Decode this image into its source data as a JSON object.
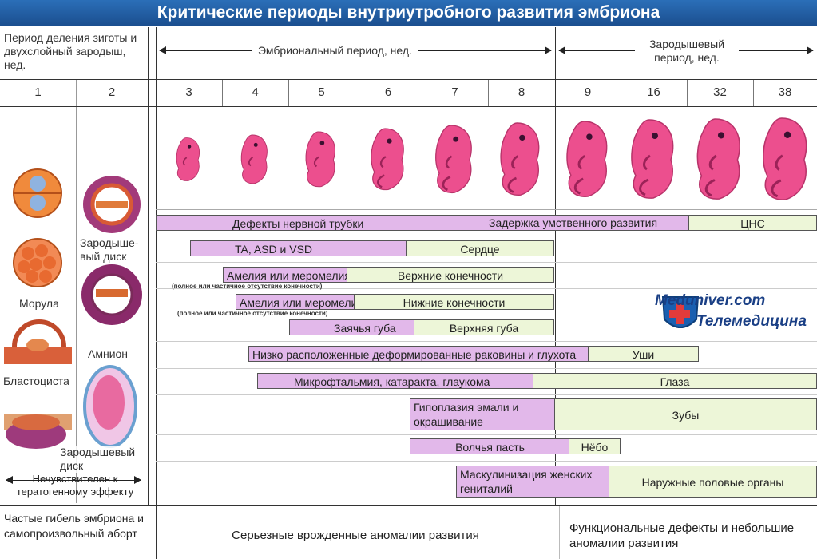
{
  "title": "Критические периоды внутриутробного развития эмбриона",
  "left_header": "Период деления зиготы и двухслойный зародыш, нед.",
  "embryonic_period": "Эмбриональный период, нед.",
  "fetal_period": "Зародышевый период, нед.",
  "weeks": [
    "1",
    "2",
    "3",
    "4",
    "5",
    "6",
    "7",
    "8",
    "9",
    "16",
    "32",
    "38"
  ],
  "left_labels": {
    "zarod_disk1": "Зародыше-вый диск",
    "morula": "Морула",
    "amnion": "Амнион",
    "blastocyst": "Бластоциста",
    "zarod_disk2": "Зародышевый диск"
  },
  "insensitive": "Нечувствителен к тератогенному эффекту",
  "bars": {
    "neural_defects": "Дефекты нервной трубки",
    "mental_delay": "Задержка умственного развития",
    "cns": "ЦНС",
    "heart_defects": "TA, ASD и VSD",
    "heart": "Сердце",
    "amelia_upper": "Амелия или меромелия",
    "upper_limbs": "Верхние конечности",
    "note_upper": "(полное или частичное отсутствие конечности)",
    "amelia_lower": "Амелия или меромелия",
    "lower_limbs": "Нижние конечности",
    "note_lower": "(полное или частичное отсутствие конечности)",
    "cleft_lip": "Заячья губа",
    "upper_lip": "Верхняя губа",
    "ears_defects": "Низко расположенные деформированные раковины и глухота",
    "ears": "Уши",
    "eye_defects": "Микрофтальмия, катаракта, глаукома",
    "eyes": "Глаза",
    "teeth_defects": "Гипоплазия эмали и окрашивание",
    "teeth": "Зубы",
    "cleft_palate": "Волчья пасть",
    "palate": "Нёбо",
    "masculinization": "Маскулинизация женских гениталий",
    "genitals": "Наружные половые органы"
  },
  "footer": {
    "left": "Частые гибель эмбриона и самопроизвольный аборт",
    "middle": "Серьезные врожденные аномалии развития",
    "right": "Функциональные дефекты и небольшие аномалии развития"
  },
  "watermark": {
    "line1": "Meduniver.com",
    "line2": "Телемедицина"
  },
  "colors": {
    "defect": "#e2b8ea",
    "normal": "#edf6d8",
    "title_bg": "#2b6fb8",
    "embryo": "#ec4f8e"
  }
}
